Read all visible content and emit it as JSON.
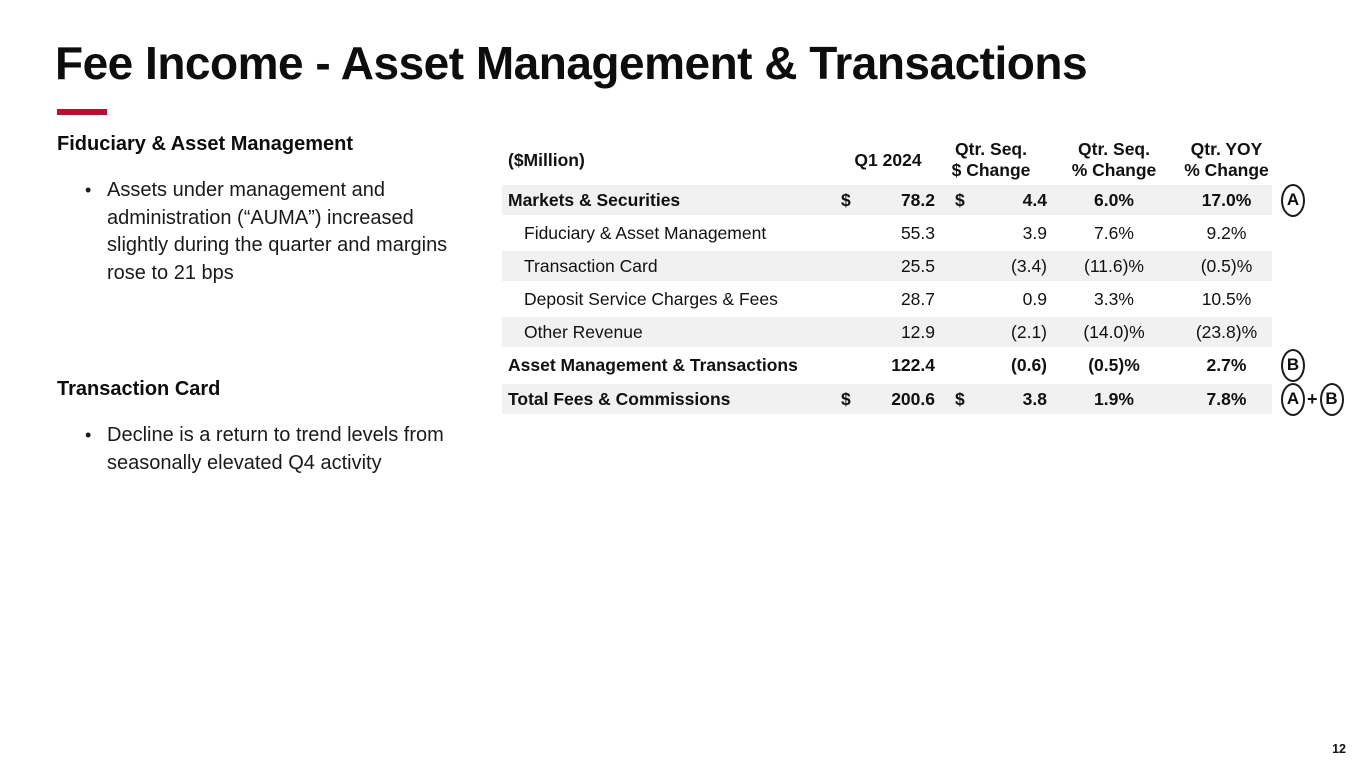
{
  "slide": {
    "title": "Fee Income - Asset Management & Transactions",
    "accent_color": "#be0d30",
    "page_number": "12"
  },
  "left_panel": {
    "sections": [
      {
        "heading": "Fiduciary & Asset Management",
        "bullets": [
          "Assets under management and administration (“AUMA”) increased slightly during the quarter and margins rose to 21 bps"
        ]
      },
      {
        "heading": "Transaction Card",
        "bullets": [
          "Decline is a return to trend levels from seasonally elevated Q4 activity"
        ]
      }
    ]
  },
  "table": {
    "unit_label": "($Million)",
    "columns": [
      {
        "top": "Q1 2024",
        "bottom": ""
      },
      {
        "top": "Qtr. Seq.",
        "bottom": "$ Change"
      },
      {
        "top": "Qtr. Seq.",
        "bottom": "% Change"
      },
      {
        "top": "Qtr. YOY",
        "bottom": "% Change"
      }
    ],
    "row_shade_color": "#f1f1f1",
    "rows": [
      {
        "label": "Markets & Securities",
        "bold": true,
        "indent": false,
        "shaded": true,
        "gap_before": false,
        "dollar1": "$",
        "q1": "78.2",
        "dollar2": "$",
        "seq_dollar": "4.4",
        "seq_pct": "6.0%",
        "yoy_pct": "17.0%",
        "marker": "A"
      },
      {
        "label": "Fiduciary & Asset Management",
        "bold": false,
        "indent": true,
        "shaded": false,
        "gap_before": false,
        "dollar1": "",
        "q1": "55.3",
        "dollar2": "",
        "seq_dollar": "3.9",
        "seq_pct": "7.6%",
        "yoy_pct": "9.2%",
        "marker": ""
      },
      {
        "label": "Transaction Card",
        "bold": false,
        "indent": true,
        "shaded": true,
        "gap_before": false,
        "dollar1": "",
        "q1": "25.5",
        "dollar2": "",
        "seq_dollar": "(3.4)",
        "seq_pct": "(11.6)%",
        "yoy_pct": "(0.5)%",
        "marker": ""
      },
      {
        "label": "Deposit Service Charges & Fees",
        "bold": false,
        "indent": true,
        "shaded": false,
        "gap_before": false,
        "dollar1": "",
        "q1": "28.7",
        "dollar2": "",
        "seq_dollar": "0.9",
        "seq_pct": "3.3%",
        "yoy_pct": "10.5%",
        "marker": ""
      },
      {
        "label": "Other Revenue",
        "bold": false,
        "indent": true,
        "shaded": true,
        "gap_before": false,
        "dollar1": "",
        "q1": "12.9",
        "dollar2": "",
        "seq_dollar": "(2.1)",
        "seq_pct": "(14.0)%",
        "yoy_pct": "(23.8)%",
        "marker": ""
      },
      {
        "label": "Asset Management & Transactions",
        "bold": true,
        "indent": false,
        "shaded": false,
        "gap_before": false,
        "dollar1": "",
        "q1": "122.4",
        "dollar2": "",
        "seq_dollar": "(0.6)",
        "seq_pct": "(0.5)%",
        "yoy_pct": "2.7%",
        "marker": "B"
      },
      {
        "label": "Total Fees & Commissions",
        "bold": true,
        "indent": false,
        "shaded": true,
        "gap_before": true,
        "dollar1": "$",
        "q1": "200.6",
        "dollar2": "$",
        "seq_dollar": "3.8",
        "seq_pct": "1.9%",
        "yoy_pct": "7.8%",
        "marker": "A+B"
      }
    ]
  }
}
